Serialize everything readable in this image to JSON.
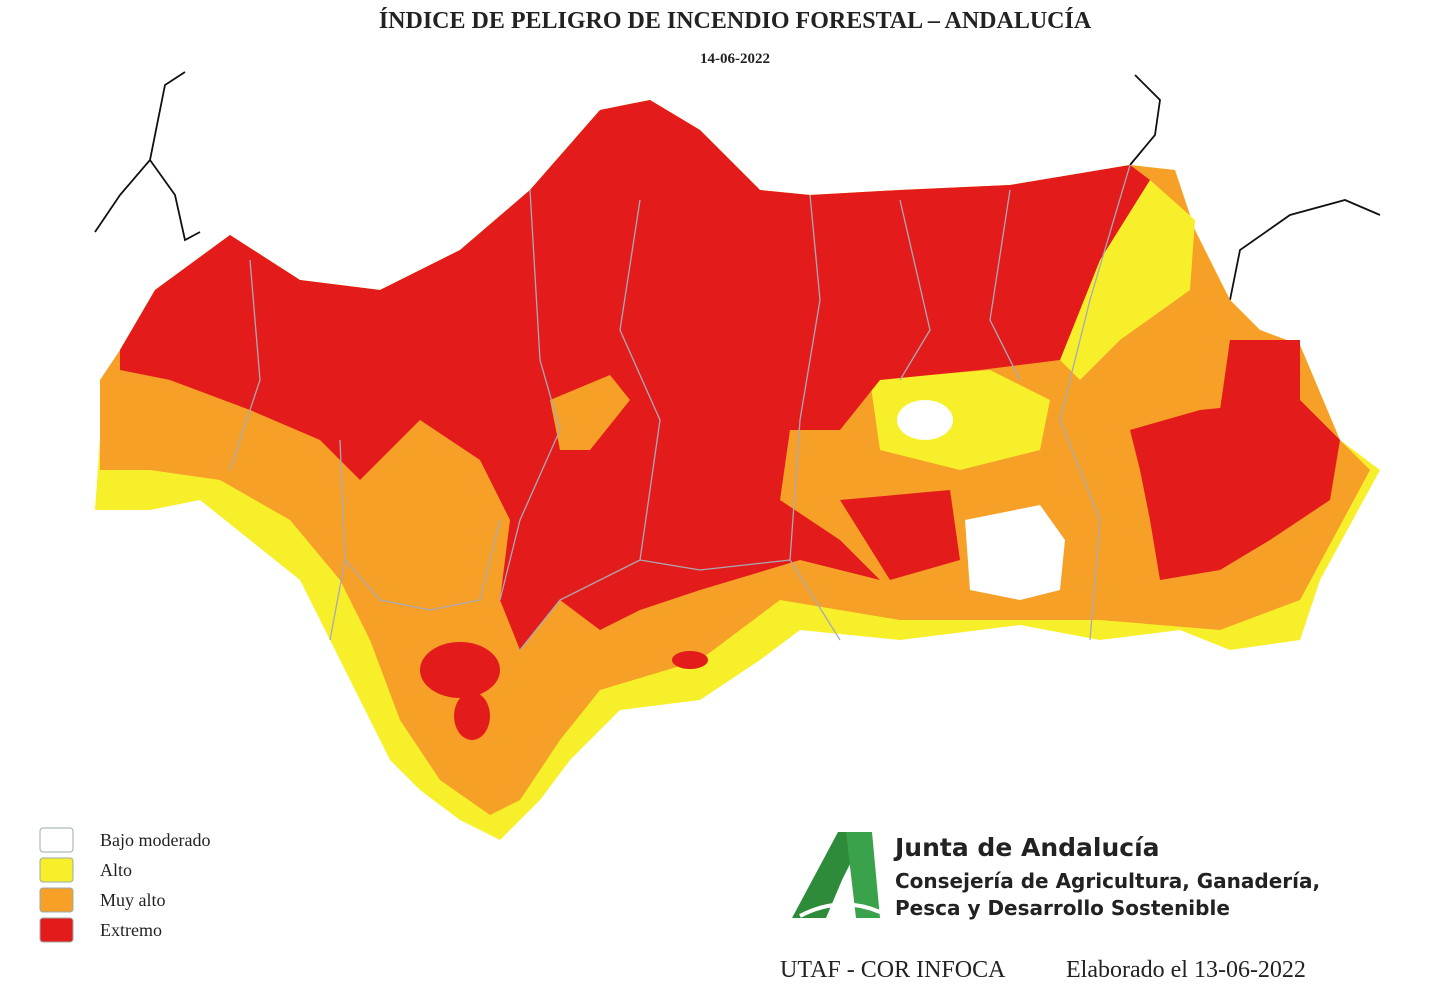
{
  "header": {
    "title": "ÍNDICE DE PELIGRO DE INCENDIO FORESTAL – ANDALUCÍA",
    "date": "14-06-2022"
  },
  "legend": [
    {
      "label": "Bajo moderado",
      "color": "#ffffff"
    },
    {
      "label": "Alto",
      "color": "#f7ef2a"
    },
    {
      "label": "Muy alto",
      "color": "#f6a028"
    },
    {
      "label": "Extremo",
      "color": "#e41b1b"
    }
  ],
  "logo": {
    "name": "Junta de Andalucía",
    "line1": "Consejería de Agricultura, Ganadería,",
    "line2": "Pesca y Desarrollo Sostenible"
  },
  "footer": {
    "source": "UTAF - COR INFOCA",
    "elaborated": "Elaborado el 13-06-2022"
  }
}
